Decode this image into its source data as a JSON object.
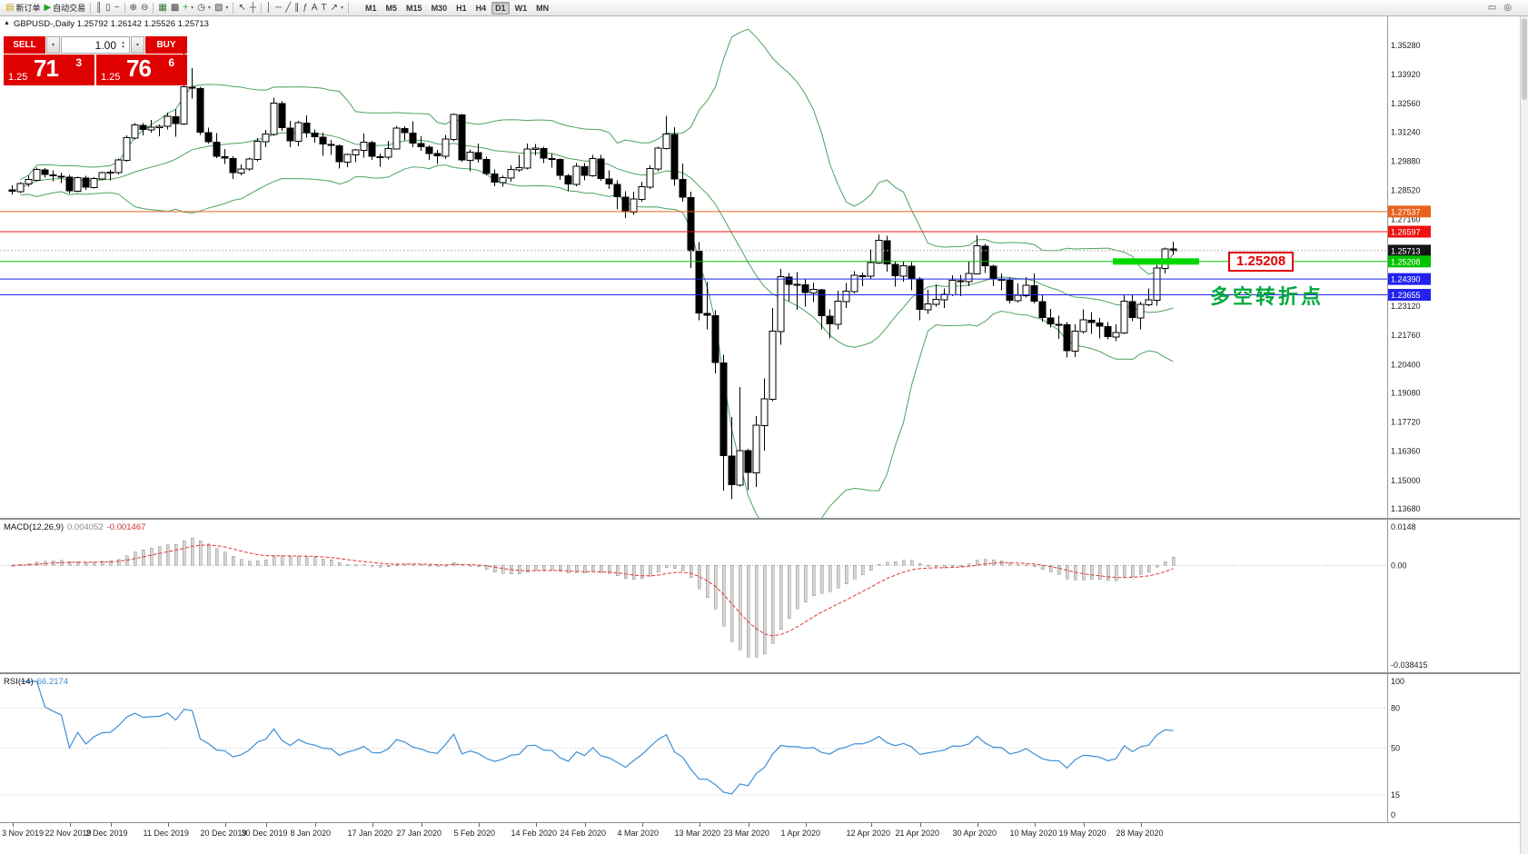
{
  "icons": {
    "down": "▾",
    "up": "▴",
    "collapse": "▲"
  },
  "toolbar": {
    "items": [
      {
        "name": "new-order-button",
        "glyph": "▤",
        "glyph_color": "#caa618",
        "label": "新订单"
      },
      {
        "name": "autotrading-button",
        "glyph": "▶",
        "glyph_color": "#1e9e1e",
        "label": "自动交易"
      },
      {
        "sep": true
      },
      {
        "name": "bar-chart-button",
        "glyph": "║"
      },
      {
        "name": "candlestick-chart-button",
        "glyph": "▯"
      },
      {
        "name": "line-chart-button",
        "glyph": "~"
      },
      {
        "sep": true
      },
      {
        "name": "zoom-in-button",
        "glyph": "⊕"
      },
      {
        "name": "zoom-out-button",
        "glyph": "⊖"
      },
      {
        "sep": true
      },
      {
        "name": "tile-windows-button",
        "glyph": "▦",
        "glyph_color": "#2e7d32"
      },
      {
        "name": "cascade-windows-button",
        "glyph": "▩"
      },
      {
        "name": "indicators-button",
        "glyph": "+",
        "glyph_color": "#1e9e1e",
        "dropdown": true
      },
      {
        "name": "periods-button",
        "glyph": "◷",
        "dropdown": true
      },
      {
        "name": "templates-button",
        "glyph": "▧",
        "dropdown": true
      },
      {
        "sep": true
      },
      {
        "name": "cursor-button",
        "glyph": "↖"
      },
      {
        "name": "crosshair-button",
        "glyph": "┼"
      },
      {
        "sep": true
      },
      {
        "name": "vertical-line-button",
        "glyph": "│"
      },
      {
        "name": "horizontal-line-button",
        "glyph": "─"
      },
      {
        "name": "trendline-button",
        "glyph": "╱"
      },
      {
        "name": "channel-button",
        "glyph": "∥"
      },
      {
        "name": "fibonacci-button",
        "glyph": "ƒ"
      },
      {
        "name": "text-button",
        "glyph": "A"
      },
      {
        "name": "text-label-button",
        "glyph": "T"
      },
      {
        "name": "arrows-button",
        "glyph": "↗",
        "dropdown": true
      },
      {
        "sep": true
      }
    ],
    "timeframes": [
      "M1",
      "M5",
      "M15",
      "M30",
      "H1",
      "H4",
      "D1",
      "W1",
      "MN"
    ],
    "active_timeframe": "D1",
    "right_items": [
      {
        "name": "chart-window-button",
        "glyph": "▭"
      },
      {
        "name": "search-button",
        "glyph": "◎"
      }
    ]
  },
  "chart": {
    "title_line": "GBPUSD-,Daily 1.25792 1.26142 1.25526 1.25713"
  },
  "trade_panel": {
    "sell_label": "SELL",
    "buy_label": "BUY",
    "volume": "1.00",
    "sell_small": "1.25",
    "sell_big": "71",
    "sell_sup": "3",
    "buy_small": "1.25",
    "buy_big": "76",
    "buy_sup": "6"
  },
  "annotations": {
    "price_callout": "1.25208",
    "cn_note": "多空转折点"
  },
  "colors": {
    "trade_red": "#df0000",
    "candle_up": "#ffffff",
    "candle_down": "#000000",
    "candle_outline": "#000000",
    "bollinger": "#4da25e",
    "macd_hist_fill": "#d6d6d6",
    "macd_hist_stroke": "#8f8f8f",
    "macd_signal": "#e23535",
    "rsi_line": "#3e8ed8",
    "highlight_green": "#00d800",
    "note_green": "#00a83c",
    "callout_red": "#e00000"
  },
  "chart_data": {
    "type": "candlestick",
    "symbol": "GBPUSD-",
    "timeframe": "Daily",
    "overlays": [
      "Bollinger Bands (20,2)"
    ],
    "y_axis_labels": [
      "1.35280",
      "1.33920",
      "1.32560",
      "1.31240",
      "1.29880",
      "1.28520",
      "1.27160",
      "1.23120",
      "1.21760",
      "1.20400",
      "1.19080",
      "1.17720",
      "1.16360",
      "1.15000",
      "1.13680"
    ],
    "levels": [
      {
        "price": 1.27537,
        "label": "1.27537",
        "color": "#e8641e"
      },
      {
        "price": 1.26597,
        "label": "1.26597",
        "color": "#ee1111"
      },
      {
        "price": 1.25713,
        "label": "1.25713",
        "color": "#151515",
        "dash": true,
        "line_color": "#b5b5b5"
      },
      {
        "price": 1.25208,
        "label": "1.25208",
        "color": "#00c400",
        "highlight": true
      },
      {
        "price": 1.2439,
        "label": "1.24390",
        "color": "#2222ee"
      },
      {
        "price": 1.23655,
        "label": "1.23655",
        "color": "#2222ee"
      }
    ],
    "x_axis_dates": [
      {
        "t": "3 Nov 2019",
        "i": 0
      },
      {
        "t": "22 Nov 2019",
        "i": 7
      },
      {
        "t": "2 Dec 2019",
        "i": 12
      },
      {
        "t": "11 Dec 2019",
        "i": 19
      },
      {
        "t": "20 Dec 2019",
        "i": 26
      },
      {
        "t": "30 Dec 2019",
        "i": 31
      },
      {
        "t": "8 Jan 2020",
        "i": 37
      },
      {
        "t": "17 Jan 2020",
        "i": 44
      },
      {
        "t": "27 Jan 2020",
        "i": 50
      },
      {
        "t": "5 Feb 2020",
        "i": 57
      },
      {
        "t": "14 Feb 2020",
        "i": 64
      },
      {
        "t": "24 Feb 2020",
        "i": 70
      },
      {
        "t": "4 Mar 2020",
        "i": 77
      },
      {
        "t": "13 Mar 2020",
        "i": 84
      },
      {
        "t": "23 Mar 2020",
        "i": 90
      },
      {
        "t": "1 Apr 2020",
        "i": 97
      },
      {
        "t": "12 Apr 2020",
        "i": 105
      },
      {
        "t": "21 Apr 2020",
        "i": 111
      },
      {
        "t": "30 Apr 2020",
        "i": 118
      },
      {
        "t": "10 May 2020",
        "i": 125
      },
      {
        "t": "19 May 2020",
        "i": 131
      },
      {
        "t": "28 May 2020",
        "i": 138
      }
    ],
    "sub_indicators": [
      {
        "name": "MACD(12,26,9)",
        "values_shown": [
          "0.004052",
          "-0.001467"
        ],
        "axis_labels": [
          "0.0148",
          "0.00",
          "-0.038415"
        ]
      },
      {
        "name": "RSI(14)",
        "value_shown": "66.2174",
        "axis_labels": [
          "100",
          "80",
          "50",
          "15",
          "0"
        ],
        "levels": [
          80,
          50,
          15
        ]
      }
    ],
    "ohlc": [
      [
        1.2855,
        1.2876,
        1.2833,
        1.2849
      ],
      [
        1.2846,
        1.289,
        1.284,
        1.2884
      ],
      [
        1.2882,
        1.2923,
        1.287,
        1.2903
      ],
      [
        1.29,
        1.2959,
        1.2895,
        1.295
      ],
      [
        1.2948,
        1.2957,
        1.2911,
        1.2926
      ],
      [
        1.2924,
        1.2946,
        1.2895,
        1.2921
      ],
      [
        1.2919,
        1.2934,
        1.2886,
        1.2916
      ],
      [
        1.2914,
        1.2925,
        1.2838,
        1.285
      ],
      [
        1.2848,
        1.2917,
        1.2844,
        1.2911
      ],
      [
        1.2909,
        1.2921,
        1.2855,
        1.2868
      ],
      [
        1.2866,
        1.2913,
        1.286,
        1.2908
      ],
      [
        1.2906,
        1.294,
        1.2899,
        1.2935
      ],
      [
        1.2933,
        1.2948,
        1.29,
        1.2938
      ],
      [
        1.2936,
        1.3,
        1.2927,
        1.2994
      ],
      [
        1.2992,
        1.3108,
        1.2985,
        1.3099
      ],
      [
        1.3097,
        1.3165,
        1.309,
        1.3158
      ],
      [
        1.3156,
        1.3166,
        1.3109,
        1.3136
      ],
      [
        1.3134,
        1.318,
        1.3122,
        1.3146
      ],
      [
        1.3144,
        1.316,
        1.3105,
        1.3152
      ],
      [
        1.315,
        1.3214,
        1.3137,
        1.3198
      ],
      [
        1.3196,
        1.323,
        1.3103,
        1.3164
      ],
      [
        1.3162,
        1.3515,
        1.3158,
        1.3335
      ],
      [
        1.3333,
        1.3422,
        1.328,
        1.3329
      ],
      [
        1.3327,
        1.3335,
        1.311,
        1.3124
      ],
      [
        1.3122,
        1.3144,
        1.307,
        1.3079
      ],
      [
        1.3077,
        1.3119,
        1.3003,
        1.3012
      ],
      [
        1.301,
        1.3046,
        1.2976,
        1.3003
      ],
      [
        1.3001,
        1.3012,
        1.2905,
        1.2934
      ],
      [
        1.2932,
        1.2973,
        1.2922,
        1.2953
      ],
      [
        1.2951,
        1.3005,
        1.2944,
        1.2998
      ],
      [
        1.2996,
        1.3096,
        1.2987,
        1.3082
      ],
      [
        1.308,
        1.3135,
        1.3054,
        1.3114
      ],
      [
        1.3112,
        1.3284,
        1.3106,
        1.3259
      ],
      [
        1.3257,
        1.3268,
        1.313,
        1.3144
      ],
      [
        1.3142,
        1.3176,
        1.3053,
        1.3084
      ],
      [
        1.3082,
        1.3176,
        1.3058,
        1.3167
      ],
      [
        1.3165,
        1.3201,
        1.3099,
        1.3122
      ],
      [
        1.312,
        1.3136,
        1.3074,
        1.3103
      ],
      [
        1.3101,
        1.3122,
        1.3013,
        1.3068
      ],
      [
        1.3066,
        1.3088,
        1.3018,
        1.3062
      ],
      [
        1.306,
        1.3066,
        1.2954,
        1.2985
      ],
      [
        1.2983,
        1.3024,
        1.296,
        1.3019
      ],
      [
        1.3017,
        1.3046,
        1.2984,
        1.304
      ],
      [
        1.3038,
        1.3118,
        1.3004,
        1.3076
      ],
      [
        1.3074,
        1.3084,
        1.2994,
        1.3012
      ],
      [
        1.301,
        1.3023,
        1.2962,
        1.3008
      ],
      [
        1.3006,
        1.3083,
        1.2996,
        1.3047
      ],
      [
        1.3045,
        1.3153,
        1.3042,
        1.3142
      ],
      [
        1.314,
        1.315,
        1.3085,
        1.3121
      ],
      [
        1.3119,
        1.3175,
        1.3053,
        1.3073
      ],
      [
        1.3071,
        1.3105,
        1.3037,
        1.3055
      ],
      [
        1.3053,
        1.3063,
        1.2994,
        1.3025
      ],
      [
        1.3023,
        1.304,
        1.2976,
        1.3014
      ],
      [
        1.3012,
        1.311,
        1.2999,
        1.3092
      ],
      [
        1.309,
        1.321,
        1.3082,
        1.3206
      ],
      [
        1.3204,
        1.3208,
        1.2985,
        1.2995
      ],
      [
        1.2993,
        1.3042,
        1.2941,
        1.303
      ],
      [
        1.3028,
        1.3071,
        1.2982,
        1.2998
      ],
      [
        1.2996,
        1.301,
        1.2922,
        1.2931
      ],
      [
        1.2929,
        1.2949,
        1.2872,
        1.289
      ],
      [
        1.2888,
        1.2922,
        1.287,
        1.2912
      ],
      [
        1.291,
        1.2968,
        1.2893,
        1.2949
      ],
      [
        1.2947,
        1.3018,
        1.294,
        1.2958
      ],
      [
        1.2956,
        1.307,
        1.295,
        1.3046
      ],
      [
        1.3044,
        1.3069,
        1.3015,
        1.305
      ],
      [
        1.3048,
        1.3055,
        1.298,
        1.3002
      ],
      [
        1.3,
        1.3023,
        1.2959,
        1.2998
      ],
      [
        1.2996,
        1.3,
        1.2902,
        1.2922
      ],
      [
        1.292,
        1.2928,
        1.2849,
        1.2882
      ],
      [
        1.288,
        1.298,
        1.2872,
        1.2964
      ],
      [
        1.2962,
        1.298,
        1.29,
        1.2923
      ],
      [
        1.2921,
        1.3018,
        1.2915,
        1.3001
      ],
      [
        1.2999,
        1.3017,
        1.2896,
        1.2908
      ],
      [
        1.2906,
        1.2945,
        1.2859,
        1.2883
      ],
      [
        1.2881,
        1.2899,
        1.2763,
        1.2823
      ],
      [
        1.2821,
        1.2848,
        1.2723,
        1.2753
      ],
      [
        1.2751,
        1.2846,
        1.2738,
        1.2812
      ],
      [
        1.281,
        1.2893,
        1.28,
        1.287
      ],
      [
        1.2868,
        1.2969,
        1.2858,
        1.2955
      ],
      [
        1.2953,
        1.3055,
        1.2941,
        1.305
      ],
      [
        1.3048,
        1.32,
        1.3043,
        1.3115
      ],
      [
        1.3113,
        1.3146,
        1.2874,
        1.2905
      ],
      [
        1.2903,
        1.2978,
        1.28,
        1.2821
      ],
      [
        1.2819,
        1.2846,
        1.249,
        1.257
      ],
      [
        1.2568,
        1.261,
        1.2247,
        1.228
      ],
      [
        1.2278,
        1.2425,
        1.2204,
        1.227
      ],
      [
        1.2268,
        1.2294,
        1.2,
        1.205
      ],
      [
        1.2048,
        1.2085,
        1.1452,
        1.1615
      ],
      [
        1.1613,
        1.1795,
        1.1412,
        1.148
      ],
      [
        1.1478,
        1.1935,
        1.1472,
        1.164
      ],
      [
        1.1638,
        1.1648,
        1.1455,
        1.1538
      ],
      [
        1.1536,
        1.18,
        1.147,
        1.1757
      ],
      [
        1.1755,
        1.1975,
        1.164,
        1.188
      ],
      [
        1.1878,
        1.2305,
        1.187,
        1.2195
      ],
      [
        1.2193,
        1.2486,
        1.2132,
        1.245
      ],
      [
        1.2448,
        1.2466,
        1.2335,
        1.2415
      ],
      [
        1.2413,
        1.2472,
        1.2296,
        1.2415
      ],
      [
        1.2413,
        1.244,
        1.231,
        1.2375
      ],
      [
        1.2373,
        1.2422,
        1.2332,
        1.239
      ],
      [
        1.2388,
        1.2393,
        1.2205,
        1.2267
      ],
      [
        1.2265,
        1.2297,
        1.2163,
        1.2229
      ],
      [
        1.2227,
        1.2384,
        1.2205,
        1.2335
      ],
      [
        1.2333,
        1.242,
        1.2303,
        1.2382
      ],
      [
        1.238,
        1.2475,
        1.2371,
        1.2456
      ],
      [
        1.2454,
        1.247,
        1.2405,
        1.2455
      ],
      [
        1.2453,
        1.2577,
        1.244,
        1.2516
      ],
      [
        1.2514,
        1.2647,
        1.251,
        1.262
      ],
      [
        1.2618,
        1.264,
        1.2473,
        1.251
      ],
      [
        1.2508,
        1.252,
        1.2404,
        1.2455
      ],
      [
        1.2453,
        1.2523,
        1.2427,
        1.25
      ],
      [
        1.2498,
        1.2518,
        1.2387,
        1.2442
      ],
      [
        1.244,
        1.2448,
        1.2247,
        1.2297
      ],
      [
        1.2295,
        1.2389,
        1.2277,
        1.2322
      ],
      [
        1.232,
        1.2414,
        1.231,
        1.2345
      ],
      [
        1.2343,
        1.2395,
        1.2303,
        1.2367
      ],
      [
        1.2365,
        1.2456,
        1.2358,
        1.2433
      ],
      [
        1.2431,
        1.2459,
        1.2358,
        1.2428
      ],
      [
        1.2426,
        1.2519,
        1.2405,
        1.2465
      ],
      [
        1.2463,
        1.2643,
        1.246,
        1.2594
      ],
      [
        1.2592,
        1.2602,
        1.2466,
        1.25
      ],
      [
        1.2498,
        1.2505,
        1.2405,
        1.244
      ],
      [
        1.2438,
        1.2465,
        1.2387,
        1.2435
      ],
      [
        1.2433,
        1.2445,
        1.2325,
        1.234
      ],
      [
        1.2338,
        1.2418,
        1.233,
        1.2363
      ],
      [
        1.2361,
        1.2447,
        1.2353,
        1.241
      ],
      [
        1.2408,
        1.2465,
        1.2325,
        1.2336
      ],
      [
        1.2334,
        1.2366,
        1.224,
        1.226
      ],
      [
        1.2258,
        1.23,
        1.2212,
        1.223
      ],
      [
        1.2228,
        1.2267,
        1.216,
        1.2227
      ],
      [
        1.2225,
        1.2239,
        1.2073,
        1.2105
      ],
      [
        1.2103,
        1.2227,
        1.2075,
        1.2195
      ],
      [
        1.2193,
        1.2297,
        1.2185,
        1.2248
      ],
      [
        1.2246,
        1.2285,
        1.2183,
        1.2237
      ],
      [
        1.2235,
        1.2257,
        1.2163,
        1.222
      ],
      [
        1.2218,
        1.2238,
        1.2158,
        1.217
      ],
      [
        1.2168,
        1.2228,
        1.215,
        1.219
      ],
      [
        1.2188,
        1.2365,
        1.2183,
        1.2335
      ],
      [
        1.2333,
        1.2363,
        1.2242,
        1.226
      ],
      [
        1.2258,
        1.2333,
        1.2205,
        1.232
      ],
      [
        1.2318,
        1.2394,
        1.2312,
        1.2342
      ],
      [
        1.234,
        1.2506,
        1.2315,
        1.249
      ],
      [
        1.2488,
        1.2585,
        1.2465,
        1.2579
      ],
      [
        1.25792,
        1.26142,
        1.25526,
        1.25713
      ]
    ]
  }
}
